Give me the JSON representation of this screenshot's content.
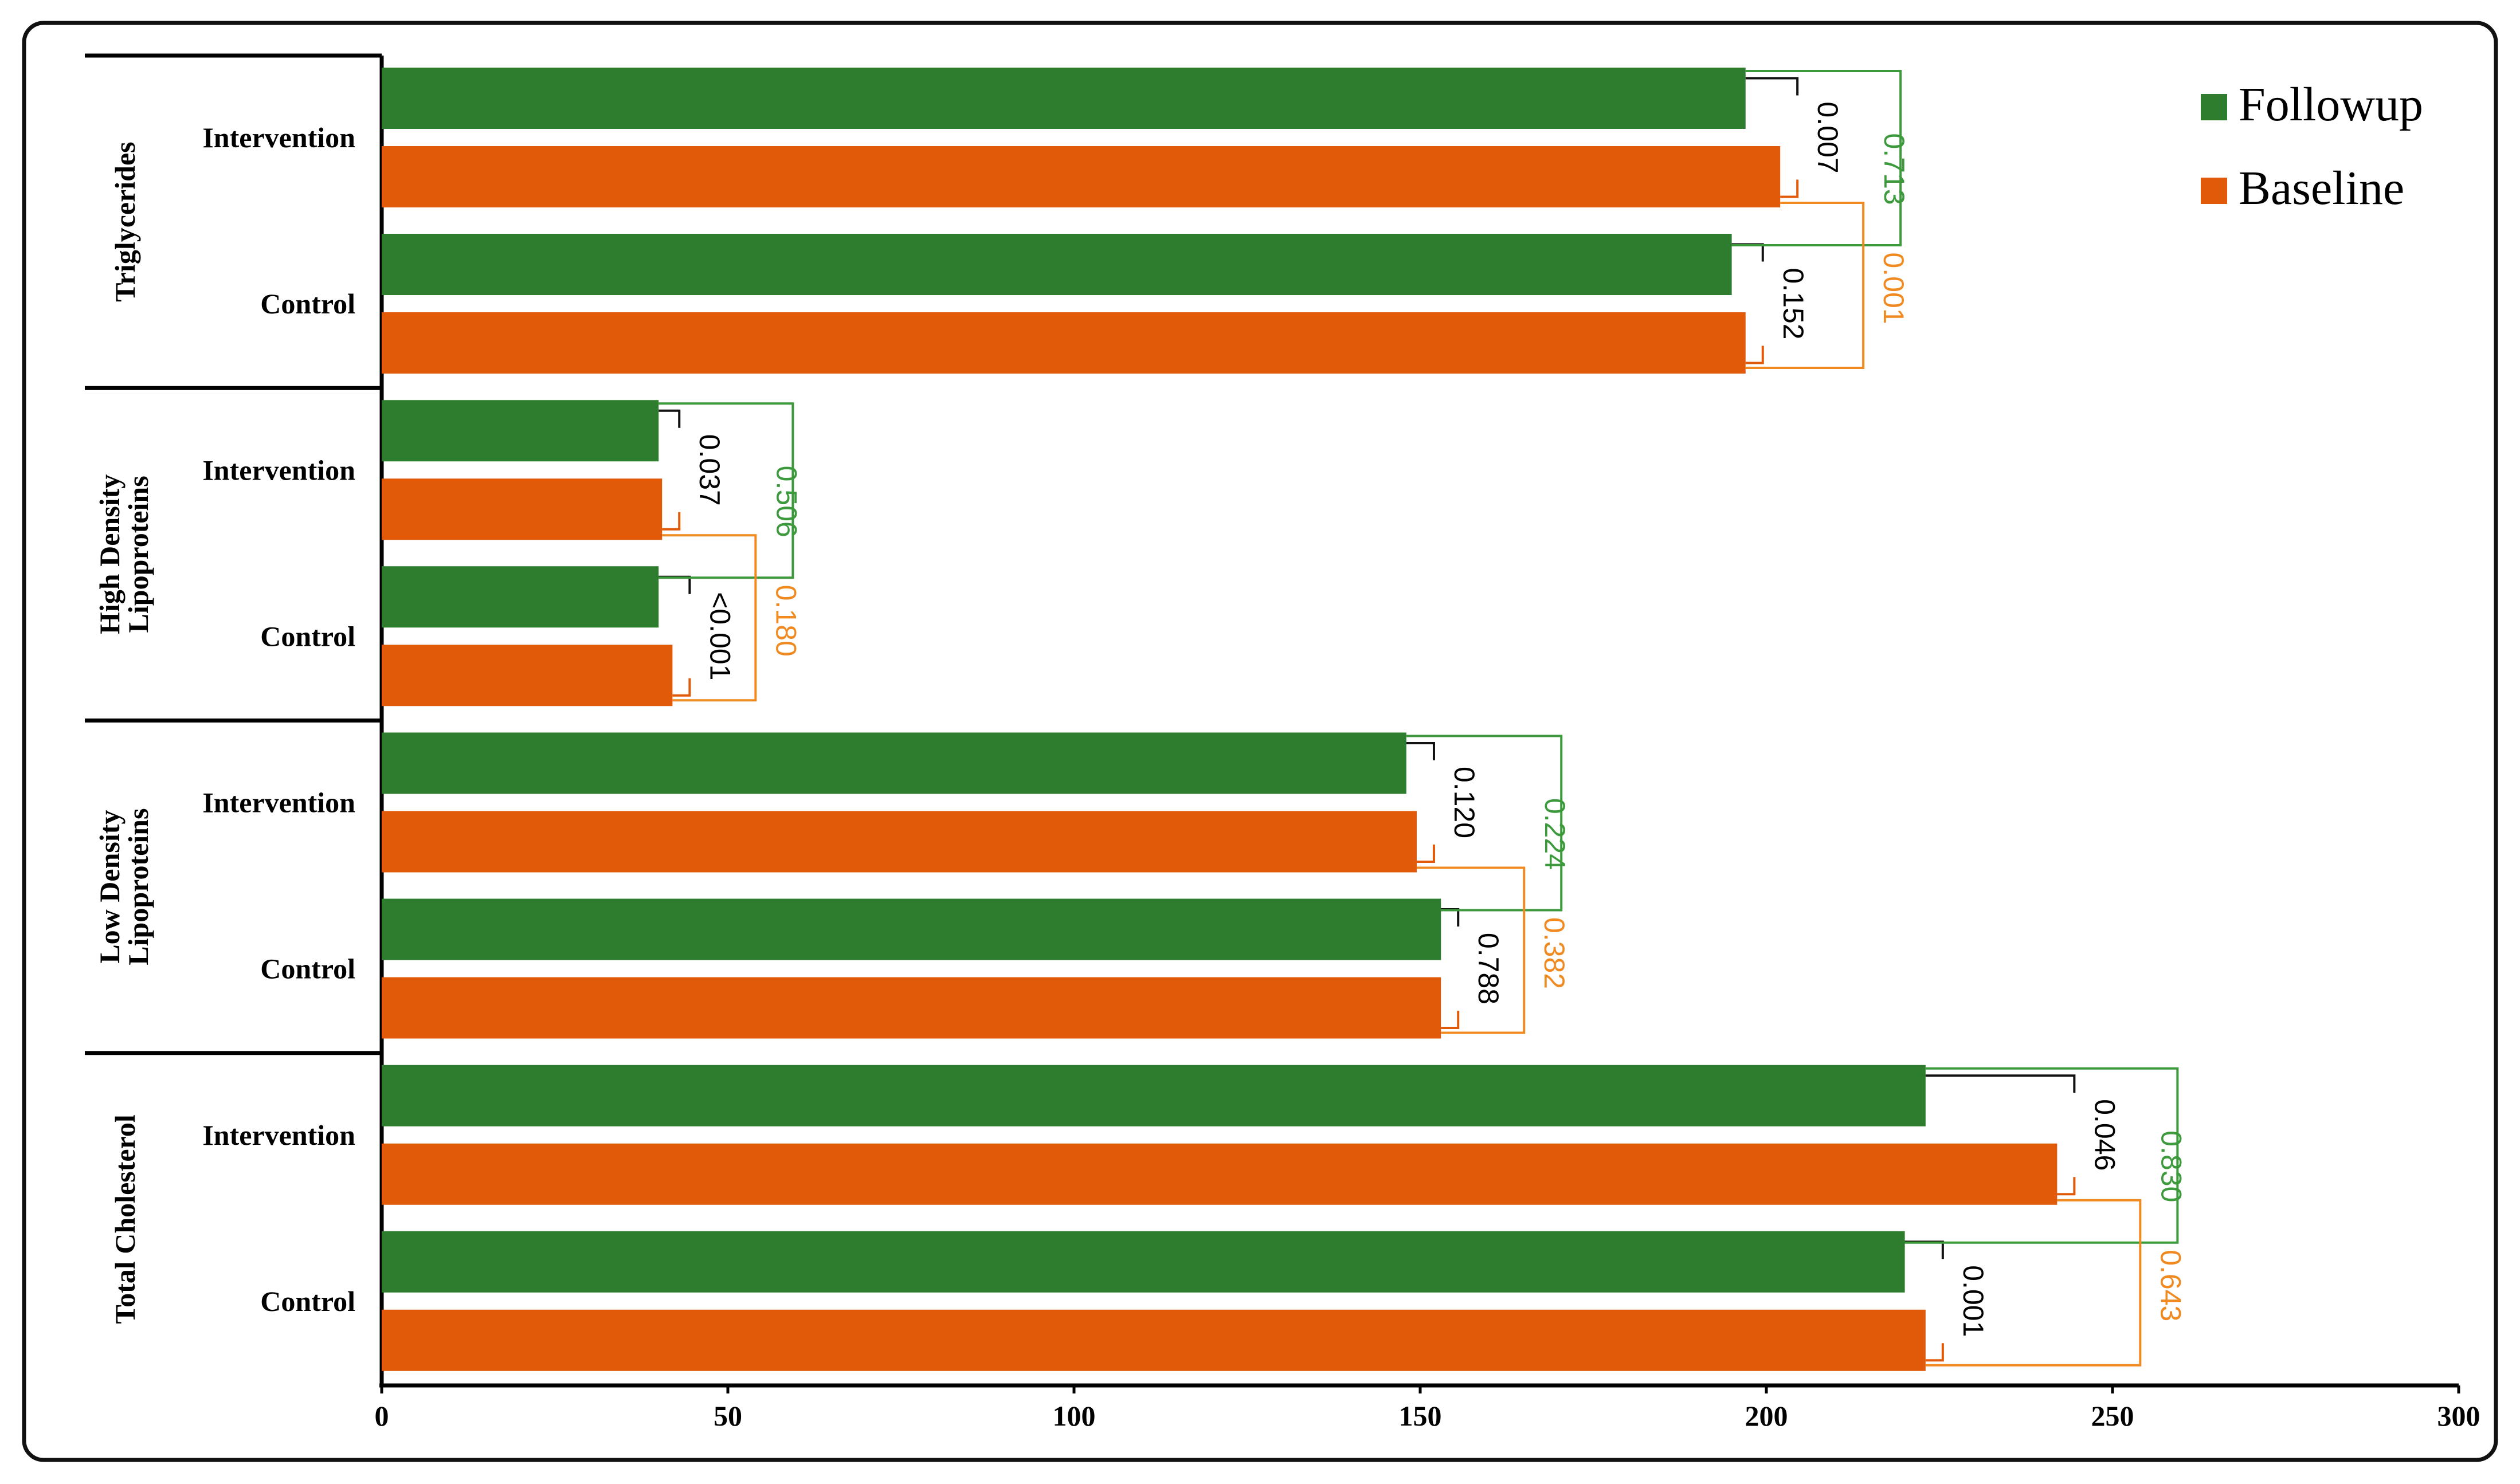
{
  "chart_data": {
    "type": "bar",
    "orientation": "horizontal",
    "xlim": [
      0,
      300
    ],
    "xticks": [
      0,
      50,
      100,
      150,
      200,
      250,
      300
    ],
    "legend_position": "top-right",
    "legend": [
      {
        "name": "Followup",
        "color": "#2e7d2e"
      },
      {
        "name": "Baseline",
        "color": "#e05a0a"
      }
    ],
    "pvalue_colors": {
      "within": "#000000",
      "followup": "#3c9a3c",
      "baseline": "#f08a20"
    },
    "groups": [
      {
        "name": "Triglycerides",
        "rows": [
          {
            "label": "Intervention",
            "followup": 197,
            "baseline": 202,
            "p_within": "0.007"
          },
          {
            "label": "Control",
            "followup": 195,
            "baseline": 197,
            "p_within": "0.152"
          }
        ],
        "p_followup": "0.713",
        "p_baseline": "0.001"
      },
      {
        "name": "High Density Lipoproteins",
        "rows": [
          {
            "label": "Intervention",
            "followup": 40,
            "baseline": 40.5,
            "p_within": "0.037"
          },
          {
            "label": "Control",
            "followup": 40,
            "baseline": 42,
            "p_within": "<0.001"
          }
        ],
        "p_followup": "0.506",
        "p_baseline": "0.180"
      },
      {
        "name": "Low Density Lipoproteins",
        "rows": [
          {
            "label": "Intervention",
            "followup": 148,
            "baseline": 149.5,
            "p_within": "0.120"
          },
          {
            "label": "Control",
            "followup": 153,
            "baseline": 153,
            "p_within": "0.788"
          }
        ],
        "p_followup": "0.224",
        "p_baseline": "0.382"
      },
      {
        "name": "Total Cholesterol",
        "rows": [
          {
            "label": "Intervention",
            "followup": 223,
            "baseline": 242,
            "p_within": "0.046"
          },
          {
            "label": "Control",
            "followup": 220,
            "baseline": 223,
            "p_within": "0.001"
          }
        ],
        "p_followup": "0.830",
        "p_baseline": "0.643"
      }
    ]
  }
}
